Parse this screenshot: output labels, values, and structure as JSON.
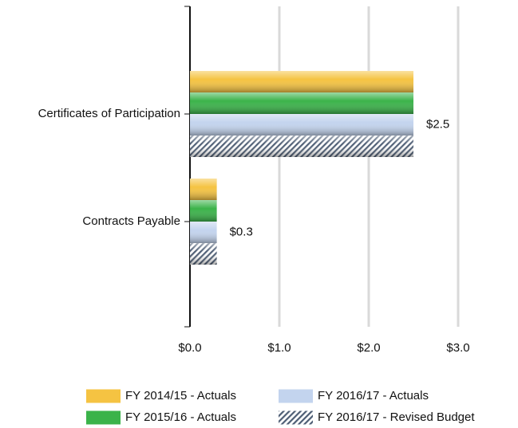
{
  "chart_data": {
    "type": "hbar",
    "categories": [
      "Certificates of Participation",
      "Contracts Payable"
    ],
    "series": [
      {
        "name": "FY 2014/15 - Actuals",
        "color": "#f5c342",
        "values": [
          2.5,
          0.3
        ]
      },
      {
        "name": "FY 2015/16 - Actuals",
        "color": "#3bb34a",
        "values": [
          2.5,
          0.3
        ]
      },
      {
        "name": "FY 2016/17 - Actuals",
        "color": "#c3d4ee",
        "values": [
          2.5,
          0.3
        ],
        "value_labels": [
          "$2.5",
          "$0.3"
        ]
      },
      {
        "name": "FY 2016/17 - Revised Budget",
        "color": "#4d5d74",
        "values": [
          2.5,
          0.3
        ],
        "hatch": true
      }
    ],
    "xlim": [
      0,
      3.65
    ],
    "xticks": [
      {
        "value": 0,
        "label": "$0.0"
      },
      {
        "value": 1,
        "label": "$1.0"
      },
      {
        "value": 2,
        "label": "$2.0"
      },
      {
        "value": 3,
        "label": "$3.0"
      }
    ],
    "grid": true,
    "legend": "bottom"
  }
}
